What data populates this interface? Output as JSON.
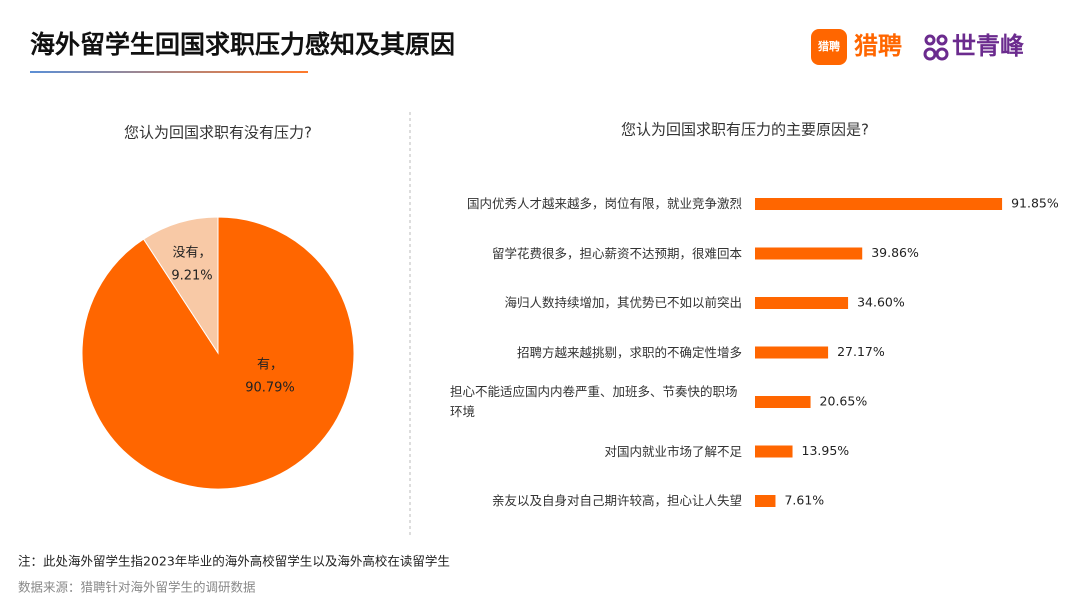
{
  "header": {
    "title": "海外留学生回国求职压力感知及其原因",
    "logos": [
      "猎聘",
      "猎聘",
      "世青峰"
    ]
  },
  "chart_data": [
    {
      "type": "pie",
      "title": "您认为回国求职有没有压力?",
      "categories": [
        "有，",
        "没有，"
      ],
      "values": [
        90.79,
        9.21
      ],
      "value_labels": [
        "90.79%",
        "9.21%"
      ],
      "colors": [
        "#ff6600",
        "#f8c9a6"
      ]
    },
    {
      "type": "hbar",
      "title": "您认为回国求职有压力的主要原因是?",
      "categories": [
        "国内优秀人才越来越多，岗位有限，就业竞争激烈",
        "留学花费很多，担心薪资不达预期，很难回本",
        "海归人数持续增加，其优势已不如以前突出",
        "招聘方越来越挑剔，求职的不确定性增多",
        "担心不能适应国内内卷严重、加班多、节奏快的职场环境",
        "对国内就业市场了解不足",
        "亲友以及自身对自己期许较高，担心让人失望"
      ],
      "values": [
        91.85,
        39.86,
        34.6,
        27.17,
        20.65,
        13.95,
        7.61
      ],
      "value_labels": [
        "91.85%",
        "39.86%",
        "34.60%",
        "27.17%",
        "20.65%",
        "13.95%",
        "7.61%"
      ],
      "color": "#ff6600"
    }
  ],
  "footer": {
    "note": "注：此处海外留学生指2023年毕业的海外高校留学生以及海外高校在读留学生",
    "source": "数据来源：猎聘针对海外留学生的调研数据"
  }
}
